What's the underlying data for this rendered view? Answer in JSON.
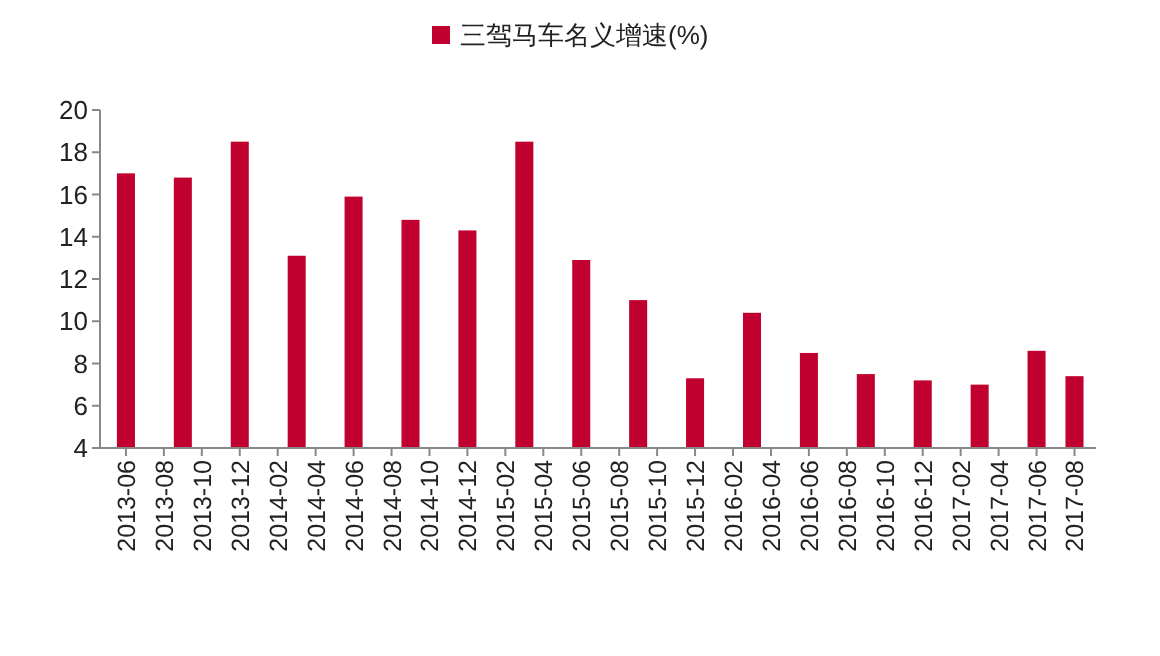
{
  "chart_data": {
    "type": "bar",
    "x": [
      "2013-06",
      "2013-09",
      "2013-12",
      "2014-03",
      "2014-06",
      "2014-09",
      "2014-12",
      "2015-03",
      "2015-06",
      "2015-09",
      "2015-12",
      "2016-03",
      "2016-06",
      "2016-09",
      "2016-12",
      "2017-03",
      "2017-06",
      "2017-08"
    ],
    "series": [
      {
        "name": "三驾马车名义增速(%)",
        "color": "#c0002f",
        "values": [
          17.0,
          16.8,
          18.5,
          13.1,
          15.9,
          14.8,
          14.3,
          18.5,
          12.9,
          11.0,
          7.3,
          10.4,
          8.5,
          7.5,
          7.2,
          7.0,
          8.6,
          7.4
        ]
      }
    ],
    "xlim": [
      "2013-04-20",
      "2017-09-05"
    ],
    "xticks": [
      "2013-06",
      "2013-08",
      "2013-10",
      "2013-12",
      "2014-02",
      "2014-04",
      "2014-06",
      "2014-08",
      "2014-10",
      "2014-12",
      "2015-02",
      "2015-04",
      "2015-06",
      "2015-08",
      "2015-10",
      "2015-12",
      "2016-02",
      "2016-04",
      "2016-06",
      "2016-08",
      "2016-10",
      "2016-12",
      "2017-02",
      "2017-04",
      "2017-06",
      "2017-08"
    ],
    "ylim": [
      4,
      20
    ],
    "yticks": [
      4,
      6,
      8,
      10,
      12,
      14,
      16,
      18,
      20
    ],
    "grid": false,
    "legend": "top"
  }
}
